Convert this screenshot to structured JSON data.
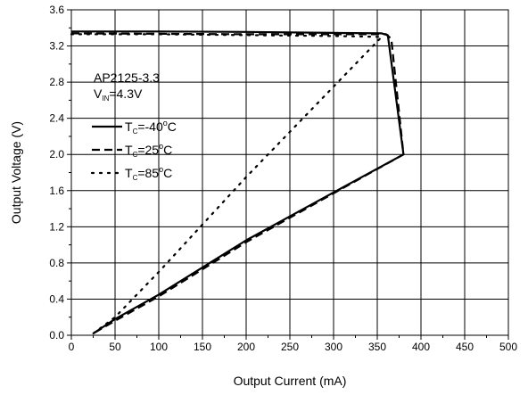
{
  "chart_data": {
    "type": "line",
    "xlabel": "Output Current (mA)",
    "ylabel": "Output Voltage (V)",
    "xlim": [
      0,
      500
    ],
    "ylim": [
      0.0,
      3.6
    ],
    "x_ticks": [
      "0",
      "50",
      "100",
      "150",
      "200",
      "250",
      "300",
      "350",
      "400",
      "450",
      "500"
    ],
    "y_ticks": [
      "0.0",
      "0.4",
      "0.8",
      "1.2",
      "1.6",
      "2.0",
      "2.4",
      "2.8",
      "3.2",
      "3.6"
    ],
    "grid": true,
    "legend_title": {
      "line1": "AP2125-3.3",
      "line2_main": "V",
      "line2_sub": "IN",
      "line2_rest": "=4.3V"
    },
    "legend_position": "top-left",
    "series": [
      {
        "name": "TC=-40°C",
        "label_main": "T",
        "label_sub": "C",
        "label_mid": "=-40",
        "label_sup": "o",
        "label_end": "C",
        "style": "solid",
        "color": "#000000",
        "x": [
          0,
          100,
          200,
          300,
          355,
          362,
          380,
          300,
          200,
          100,
          50,
          25
        ],
        "y": [
          3.36,
          3.36,
          3.355,
          3.345,
          3.34,
          3.32,
          2.0,
          1.58,
          1.05,
          0.45,
          0.18,
          0.02
        ]
      },
      {
        "name": "TC=25°C",
        "label_main": "T",
        "label_sub": "C",
        "label_mid": "=25",
        "label_sup": "o",
        "label_end": "C",
        "style": "dashed",
        "color": "#000000",
        "x": [
          0,
          100,
          200,
          300,
          360,
          366,
          380,
          300,
          200,
          100,
          50,
          25
        ],
        "y": [
          3.34,
          3.335,
          3.33,
          3.33,
          3.33,
          3.28,
          2.0,
          1.57,
          1.03,
          0.43,
          0.16,
          0.02
        ]
      },
      {
        "name": "TC=85°C",
        "label_main": "T",
        "label_sub": "C",
        "label_mid": "=85",
        "label_sup": "o",
        "label_end": "C",
        "style": "dotted",
        "color": "#000000",
        "x": [
          0,
          100,
          200,
          300,
          355,
          200,
          100,
          50,
          25
        ],
        "y": [
          3.33,
          3.33,
          3.32,
          3.31,
          3.3,
          1.75,
          0.7,
          0.2,
          0.02
        ]
      }
    ]
  }
}
